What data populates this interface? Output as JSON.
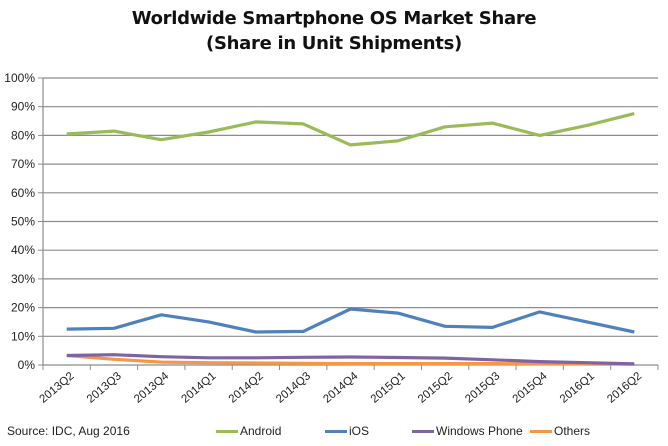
{
  "chart_data": {
    "type": "line",
    "title": "Worldwide Smartphone OS Market Share",
    "subtitle": "(Share in Unit Shipments)",
    "xlabel": "",
    "ylabel": "",
    "ylim": [
      0,
      100
    ],
    "y_ticks": [
      "0%",
      "10%",
      "20%",
      "30%",
      "40%",
      "50%",
      "60%",
      "70%",
      "80%",
      "90%",
      "100%"
    ],
    "y_tick_values": [
      0,
      10,
      20,
      30,
      40,
      50,
      60,
      70,
      80,
      90,
      100
    ],
    "grid": true,
    "legend_position": "bottom",
    "categories": [
      "2013Q2",
      "2013Q3",
      "2013Q4",
      "2014Q1",
      "2014Q2",
      "2014Q3",
      "2014Q4",
      "2015Q1",
      "2015Q2",
      "2015Q3",
      "2015Q4",
      "2016Q1",
      "2016Q2"
    ],
    "series": [
      {
        "name": "Android",
        "color": "#9bbb59",
        "values": [
          80.5,
          81.5,
          78.5,
          81.2,
          84.7,
          84.0,
          76.7,
          78.1,
          83.0,
          84.3,
          80.0,
          83.5,
          87.6
        ]
      },
      {
        "name": "iOS",
        "color": "#4f81bd",
        "values": [
          12.5,
          12.8,
          17.5,
          15.0,
          11.5,
          11.7,
          19.5,
          18.1,
          13.5,
          13.1,
          18.5,
          15.0,
          11.5
        ]
      },
      {
        "name": "Windows Phone",
        "color": "#8064a2",
        "values": [
          3.3,
          3.6,
          2.9,
          2.5,
          2.5,
          2.7,
          2.8,
          2.6,
          2.4,
          1.8,
          1.2,
          0.8,
          0.4
        ]
      },
      {
        "name": "Others",
        "color": "#f79646",
        "values": [
          3.3,
          2.0,
          1.0,
          0.8,
          0.7,
          0.6,
          0.5,
          0.5,
          0.5,
          0.5,
          0.4,
          0.4,
          0.3
        ]
      }
    ],
    "source": "Source: IDC, Aug 2016"
  }
}
